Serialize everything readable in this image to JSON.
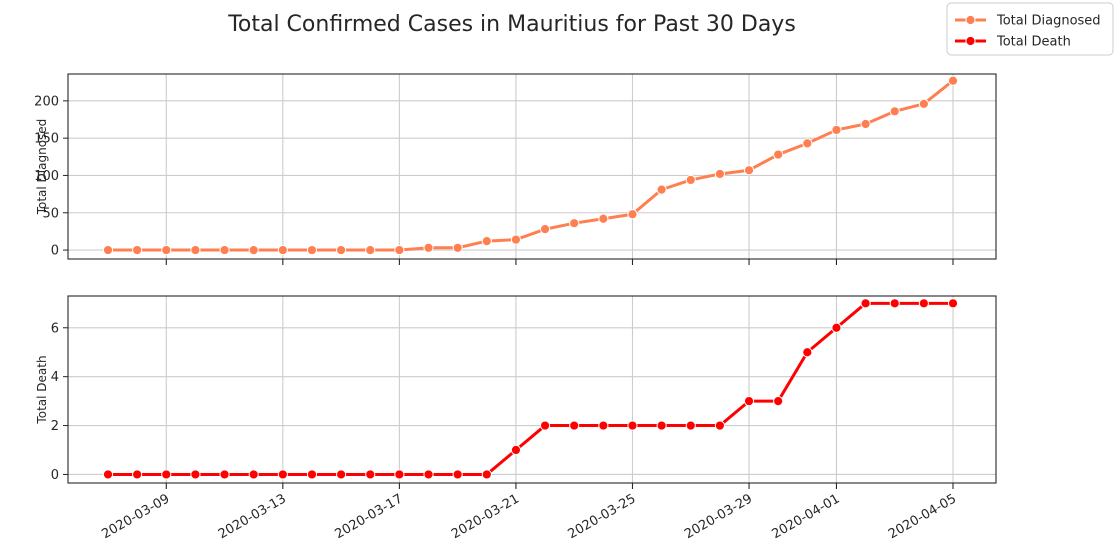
{
  "chart_data": {
    "type": "line",
    "title": "Total Confirmed Cases in Mauritius for Past 30 Days",
    "x": [
      "2020-03-07",
      "2020-03-08",
      "2020-03-09",
      "2020-03-10",
      "2020-03-11",
      "2020-03-12",
      "2020-03-13",
      "2020-03-14",
      "2020-03-15",
      "2020-03-16",
      "2020-03-17",
      "2020-03-18",
      "2020-03-19",
      "2020-03-20",
      "2020-03-21",
      "2020-03-22",
      "2020-03-23",
      "2020-03-24",
      "2020-03-25",
      "2020-03-26",
      "2020-03-27",
      "2020-03-28",
      "2020-03-29",
      "2020-03-30",
      "2020-03-31",
      "2020-04-01",
      "2020-04-02",
      "2020-04-03",
      "2020-04-04",
      "2020-04-05"
    ],
    "xticks": [
      "2020-03-09",
      "2020-03-13",
      "2020-03-17",
      "2020-03-21",
      "2020-03-25",
      "2020-03-29",
      "2020-04-01",
      "2020-04-05"
    ],
    "grid": true,
    "legend_position": "top-right",
    "panels": [
      {
        "ylabel": "Total Diagnosed",
        "ylim": [
          -12,
          236
        ],
        "yticks": [
          0,
          50,
          100,
          150,
          200
        ],
        "series": [
          {
            "name": "Total Diagnosed",
            "color": "#ff7f50",
            "values": [
              0,
              0,
              0,
              0,
              0,
              0,
              0,
              0,
              0,
              0,
              0,
              3,
              3,
              12,
              14,
              28,
              36,
              42,
              48,
              81,
              94,
              102,
              107,
              128,
              143,
              161,
              169,
              186,
              196,
              227
            ]
          }
        ]
      },
      {
        "ylabel": "Total Death",
        "ylim": [
          -0.35,
          7.3
        ],
        "yticks": [
          0,
          2,
          4,
          6
        ],
        "series": [
          {
            "name": "Total Death",
            "color": "#ff0000",
            "values": [
              0,
              0,
              0,
              0,
              0,
              0,
              0,
              0,
              0,
              0,
              0,
              0,
              0,
              0,
              1,
              2,
              2,
              2,
              2,
              2,
              2,
              2,
              3,
              3,
              5,
              6,
              7,
              7,
              7,
              7
            ]
          }
        ]
      }
    ]
  }
}
